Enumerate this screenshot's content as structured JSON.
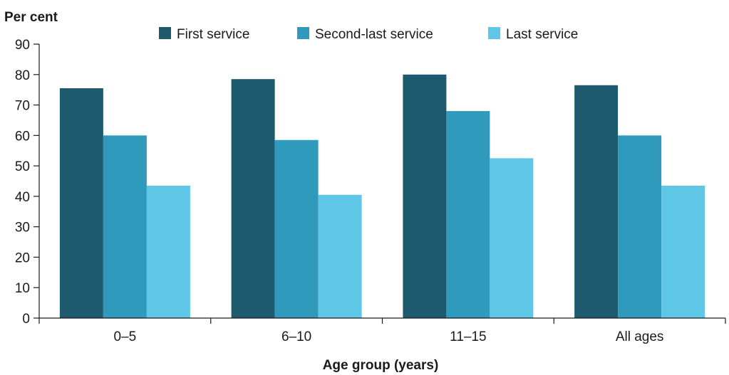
{
  "chart_data": {
    "type": "bar",
    "ylabel": "Per cent",
    "xlabel": "Age group (years)",
    "categories": [
      "0–5",
      "6–10",
      "11–15",
      "All ages"
    ],
    "series": [
      {
        "name": "First service",
        "color": "#1d5a6e",
        "values": [
          75.5,
          78.5,
          80,
          76.5
        ]
      },
      {
        "name": "Second-last service",
        "color": "#2f9abb",
        "values": [
          60,
          58.5,
          68,
          60
        ]
      },
      {
        "name": "Last service",
        "color": "#5ec7e8",
        "values": [
          43.5,
          40.5,
          52.5,
          43.5
        ]
      }
    ],
    "ylim": [
      0,
      90
    ],
    "yticks": [
      0,
      10,
      20,
      30,
      40,
      50,
      60,
      70,
      80,
      90
    ],
    "grid": false,
    "legend_position": "top"
  }
}
